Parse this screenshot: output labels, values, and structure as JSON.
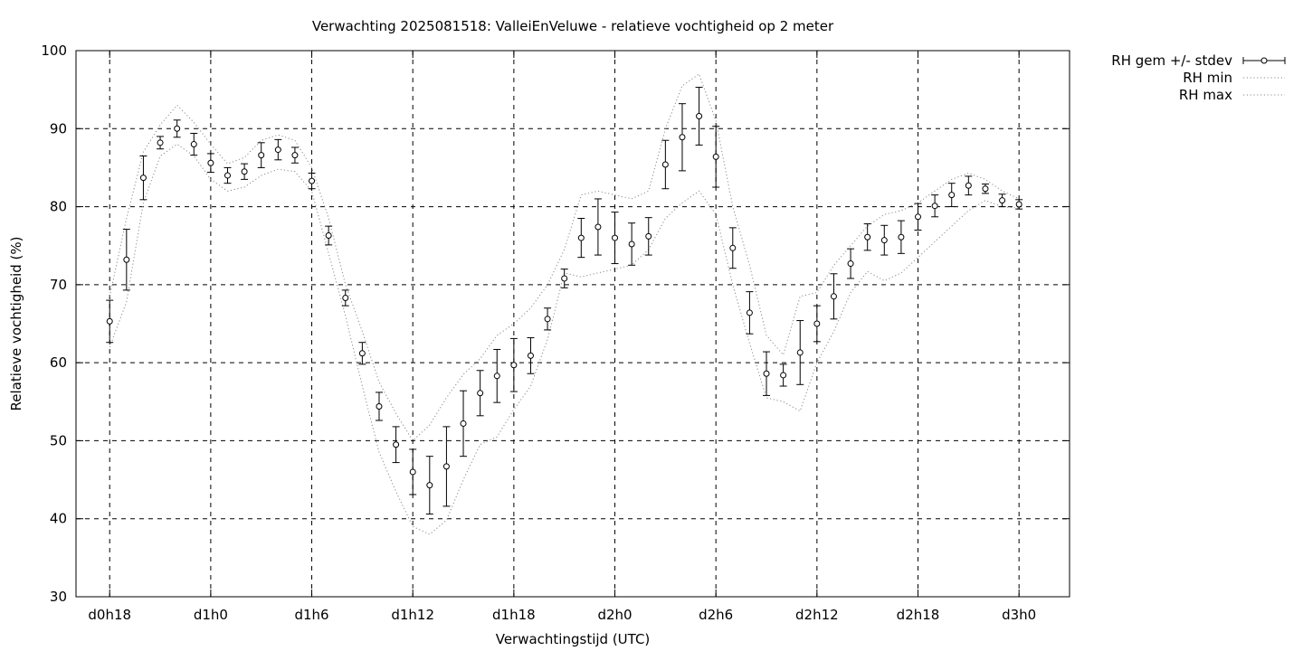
{
  "chart_data": {
    "type": "line",
    "title": "Verwachting 2025081518: ValleiEnVeluwe - relatieve vochtigheid op 2 meter",
    "xlabel": "Verwachtingstijd (UTC)",
    "ylabel": "Relatieve vochtigheid (%)",
    "ylim": [
      30,
      100
    ],
    "yticks": [
      30,
      40,
      50,
      60,
      70,
      80,
      90,
      100
    ],
    "xlim": [
      -2,
      57
    ],
    "xticks": [
      {
        "x": 0,
        "label": "d0h18"
      },
      {
        "x": 6,
        "label": "d1h0"
      },
      {
        "x": 12,
        "label": "d1h6"
      },
      {
        "x": 18,
        "label": "d1h12"
      },
      {
        "x": 24,
        "label": "d1h18"
      },
      {
        "x": 30,
        "label": "d2h0"
      },
      {
        "x": 36,
        "label": "d2h6"
      },
      {
        "x": 42,
        "label": "d2h12"
      },
      {
        "x": 48,
        "label": "d2h18"
      },
      {
        "x": 54,
        "label": "d3h0"
      }
    ],
    "x_unit_note": "hours after d0h18",
    "grid": true,
    "legend_position": "outside-top-right",
    "series": [
      {
        "name": "RH gem +/- stdev",
        "style": "points-errorbars",
        "x": [
          0,
          1,
          2,
          3,
          4,
          5,
          6,
          7,
          8,
          9,
          10,
          11,
          12,
          13,
          14,
          15,
          16,
          17,
          18,
          19,
          20,
          21,
          22,
          23,
          24,
          25,
          26,
          27,
          28,
          29,
          30,
          31,
          32,
          33,
          34,
          35,
          36,
          37,
          38,
          39,
          40,
          41,
          42,
          43,
          44,
          45,
          46,
          47,
          48,
          49,
          50,
          51,
          52,
          53,
          54
        ],
        "mean": [
          65.3,
          73.2,
          83.7,
          88.2,
          90.0,
          88.0,
          85.6,
          84.0,
          84.5,
          86.6,
          87.3,
          86.6,
          83.3,
          76.3,
          68.3,
          61.2,
          54.4,
          49.5,
          46.0,
          44.3,
          46.7,
          52.2,
          56.1,
          58.3,
          59.7,
          60.9,
          65.6,
          70.8,
          76.0,
          77.4,
          76.0,
          75.2,
          76.2,
          85.4,
          88.9,
          91.6,
          86.4,
          74.7,
          66.4,
          58.6,
          58.4,
          61.3,
          65.0,
          68.5,
          72.7,
          76.1,
          75.7,
          76.1,
          78.7,
          80.1,
          81.5,
          82.7,
          82.3,
          80.8,
          80.3
        ],
        "stdev": [
          2.7,
          3.9,
          2.8,
          0.8,
          1.1,
          1.4,
          1.2,
          1.0,
          1.0,
          1.6,
          1.3,
          1.0,
          1.0,
          1.2,
          1.0,
          1.4,
          1.8,
          2.3,
          2.9,
          3.7,
          5.1,
          4.2,
          2.9,
          3.4,
          3.4,
          2.3,
          1.4,
          1.2,
          2.5,
          3.6,
          3.3,
          2.7,
          2.4,
          3.1,
          4.3,
          3.7,
          3.9,
          2.6,
          2.7,
          2.8,
          1.4,
          4.1,
          2.3,
          2.9,
          1.9,
          1.7,
          1.9,
          2.1,
          1.7,
          1.4,
          1.5,
          1.2,
          0.6,
          0.8,
          0.6
        ]
      },
      {
        "name": "RH min",
        "style": "dotted",
        "x": [
          0,
          1,
          2,
          3,
          4,
          5,
          6,
          7,
          8,
          9,
          10,
          11,
          12,
          13,
          14,
          15,
          16,
          17,
          18,
          19,
          20,
          21,
          22,
          23,
          24,
          25,
          26,
          27,
          28,
          29,
          30,
          31,
          32,
          33,
          34,
          35,
          36,
          37,
          38,
          39,
          40,
          41,
          42,
          43,
          44,
          45,
          46,
          47,
          48,
          49,
          50,
          51,
          52,
          53,
          54
        ],
        "values": [
          62.0,
          67.8,
          80.5,
          86.5,
          88.0,
          86.5,
          83.5,
          82.0,
          82.5,
          84.0,
          84.8,
          84.5,
          82.0,
          74.0,
          66.0,
          57.0,
          48.5,
          43.5,
          39.0,
          38.0,
          39.8,
          45.0,
          49.5,
          50.5,
          54.0,
          57.0,
          63.0,
          71.5,
          71.0,
          71.5,
          72.0,
          72.5,
          74.5,
          78.5,
          80.5,
          82.0,
          79.0,
          70.0,
          62.5,
          55.5,
          55.0,
          53.8,
          60.0,
          64.0,
          69.0,
          71.7,
          70.5,
          71.5,
          73.5,
          75.5,
          77.5,
          79.5,
          80.8,
          80.0,
          79.8
        ]
      },
      {
        "name": "RH max",
        "style": "dotted",
        "x": [
          0,
          1,
          2,
          3,
          4,
          5,
          6,
          7,
          8,
          9,
          10,
          11,
          12,
          13,
          14,
          15,
          16,
          17,
          18,
          19,
          20,
          21,
          22,
          23,
          24,
          25,
          26,
          27,
          28,
          29,
          30,
          31,
          32,
          33,
          34,
          35,
          36,
          37,
          38,
          39,
          40,
          41,
          42,
          43,
          44,
          45,
          46,
          47,
          48,
          49,
          50,
          51,
          52,
          53,
          54
        ],
        "values": [
          68.5,
          78.5,
          87.0,
          90.5,
          93.0,
          90.8,
          88.0,
          85.5,
          86.3,
          88.5,
          89.2,
          88.5,
          85.0,
          78.5,
          70.0,
          64.0,
          57.5,
          53.5,
          50.0,
          52.0,
          55.5,
          58.5,
          60.5,
          63.5,
          65.0,
          67.0,
          70.0,
          74.5,
          81.5,
          82.0,
          81.5,
          81.0,
          82.0,
          90.0,
          95.5,
          97.0,
          91.0,
          80.0,
          72.5,
          63.5,
          61.0,
          68.5,
          69.0,
          72.5,
          75.0,
          77.5,
          79.0,
          79.5,
          80.5,
          82.0,
          83.5,
          84.3,
          83.5,
          82.0,
          81.0
        ]
      }
    ]
  }
}
